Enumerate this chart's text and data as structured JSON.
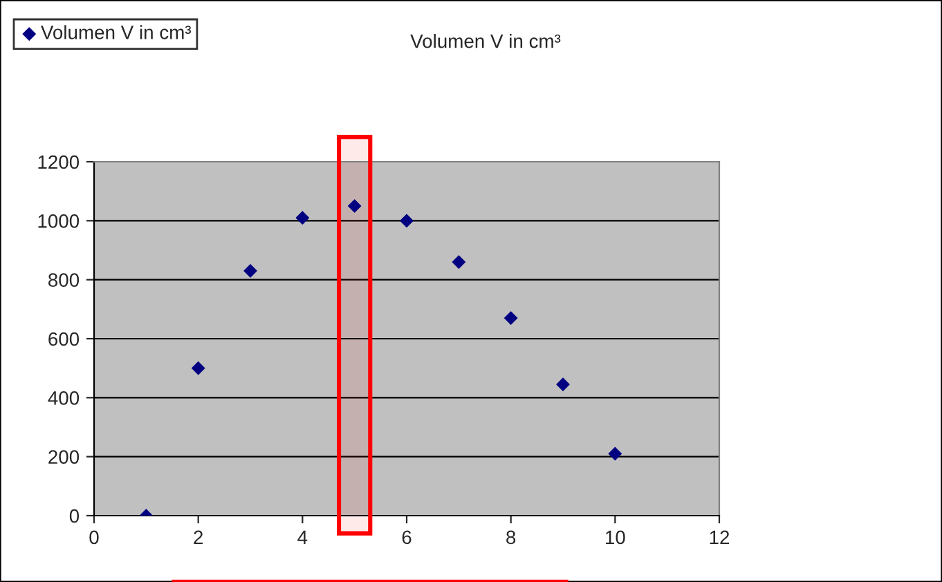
{
  "chart_data": {
    "type": "scatter",
    "title": "Volumen V in cm³",
    "x": [
      1,
      2,
      3,
      4,
      5,
      6,
      7,
      8,
      9,
      10
    ],
    "series": [
      {
        "name": "Volumen V in cm³",
        "color": "#000080",
        "values": [
          0,
          500,
          830,
          1010,
          1050,
          1000,
          860,
          670,
          445,
          210
        ]
      }
    ],
    "xlim": [
      0,
      12
    ],
    "xticks": [
      0,
      2,
      4,
      6,
      8,
      10,
      12
    ],
    "ylim": [
      0,
      1200
    ],
    "yticks": [
      0,
      200,
      400,
      600,
      800,
      1000,
      1200
    ],
    "grid": "y",
    "legend": "top left",
    "marker": "diamond",
    "bands": [
      {
        "axis": "x",
        "from": 4.7,
        "to": 5.3,
        "color": "#ff0000"
      }
    ]
  }
}
